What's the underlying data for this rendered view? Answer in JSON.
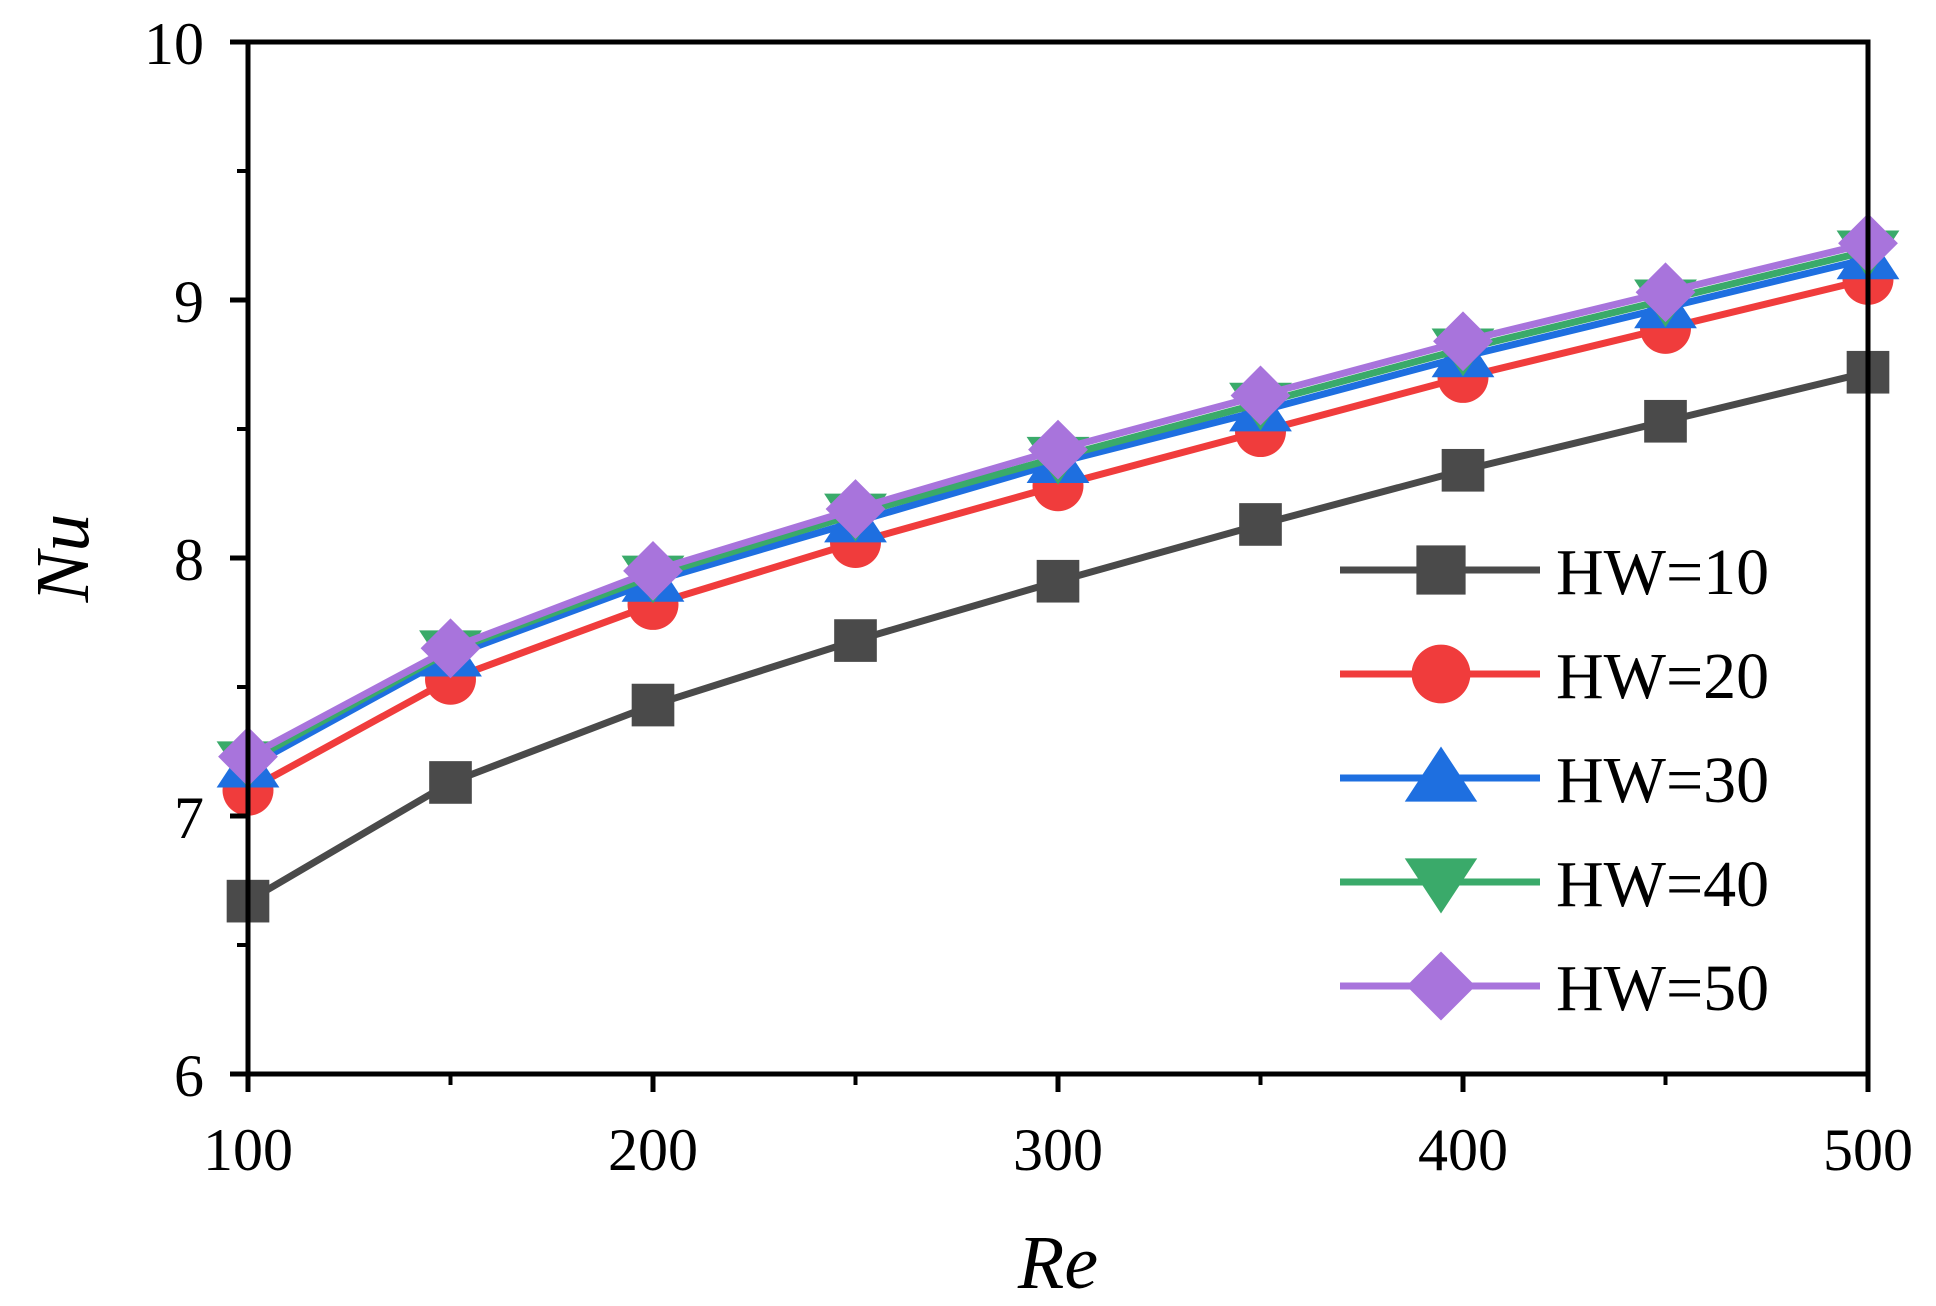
{
  "chart_data": {
    "type": "line",
    "title": "",
    "xlabel": "Re",
    "ylabel": "Nu",
    "xlim": [
      100,
      500
    ],
    "ylim": [
      6,
      10
    ],
    "x": [
      100,
      150,
      200,
      250,
      300,
      350,
      400,
      450,
      500
    ],
    "x_ticks": [
      "100",
      "200",
      "300",
      "400",
      "500"
    ],
    "y_ticks": [
      "6",
      "7",
      "8",
      "9",
      "10"
    ],
    "legend_position": "right",
    "series": [
      {
        "name": "HW=10",
        "color": "#4a4a4a",
        "marker": "square",
        "values": [
          6.67,
          7.13,
          7.43,
          7.68,
          7.91,
          8.13,
          8.34,
          8.53,
          8.72
        ]
      },
      {
        "name": "HW=20",
        "color": "#f03c3c",
        "marker": "circle",
        "values": [
          7.1,
          7.53,
          7.82,
          8.06,
          8.28,
          8.49,
          8.7,
          8.89,
          9.08
        ]
      },
      {
        "name": "HW=30",
        "color": "#1e6fe0",
        "marker": "triangle-up",
        "values": [
          7.19,
          7.62,
          7.91,
          8.14,
          8.37,
          8.57,
          8.78,
          8.97,
          9.16
        ]
      },
      {
        "name": "HW=40",
        "color": "#3aaa6a",
        "marker": "triangle-down",
        "values": [
          7.21,
          7.64,
          7.93,
          8.17,
          8.39,
          8.6,
          8.81,
          9.0,
          9.19
        ]
      },
      {
        "name": "HW=50",
        "color": "#a874dc",
        "marker": "diamond",
        "values": [
          7.23,
          7.65,
          7.95,
          8.19,
          8.42,
          8.63,
          8.84,
          9.03,
          9.22
        ]
      }
    ]
  }
}
